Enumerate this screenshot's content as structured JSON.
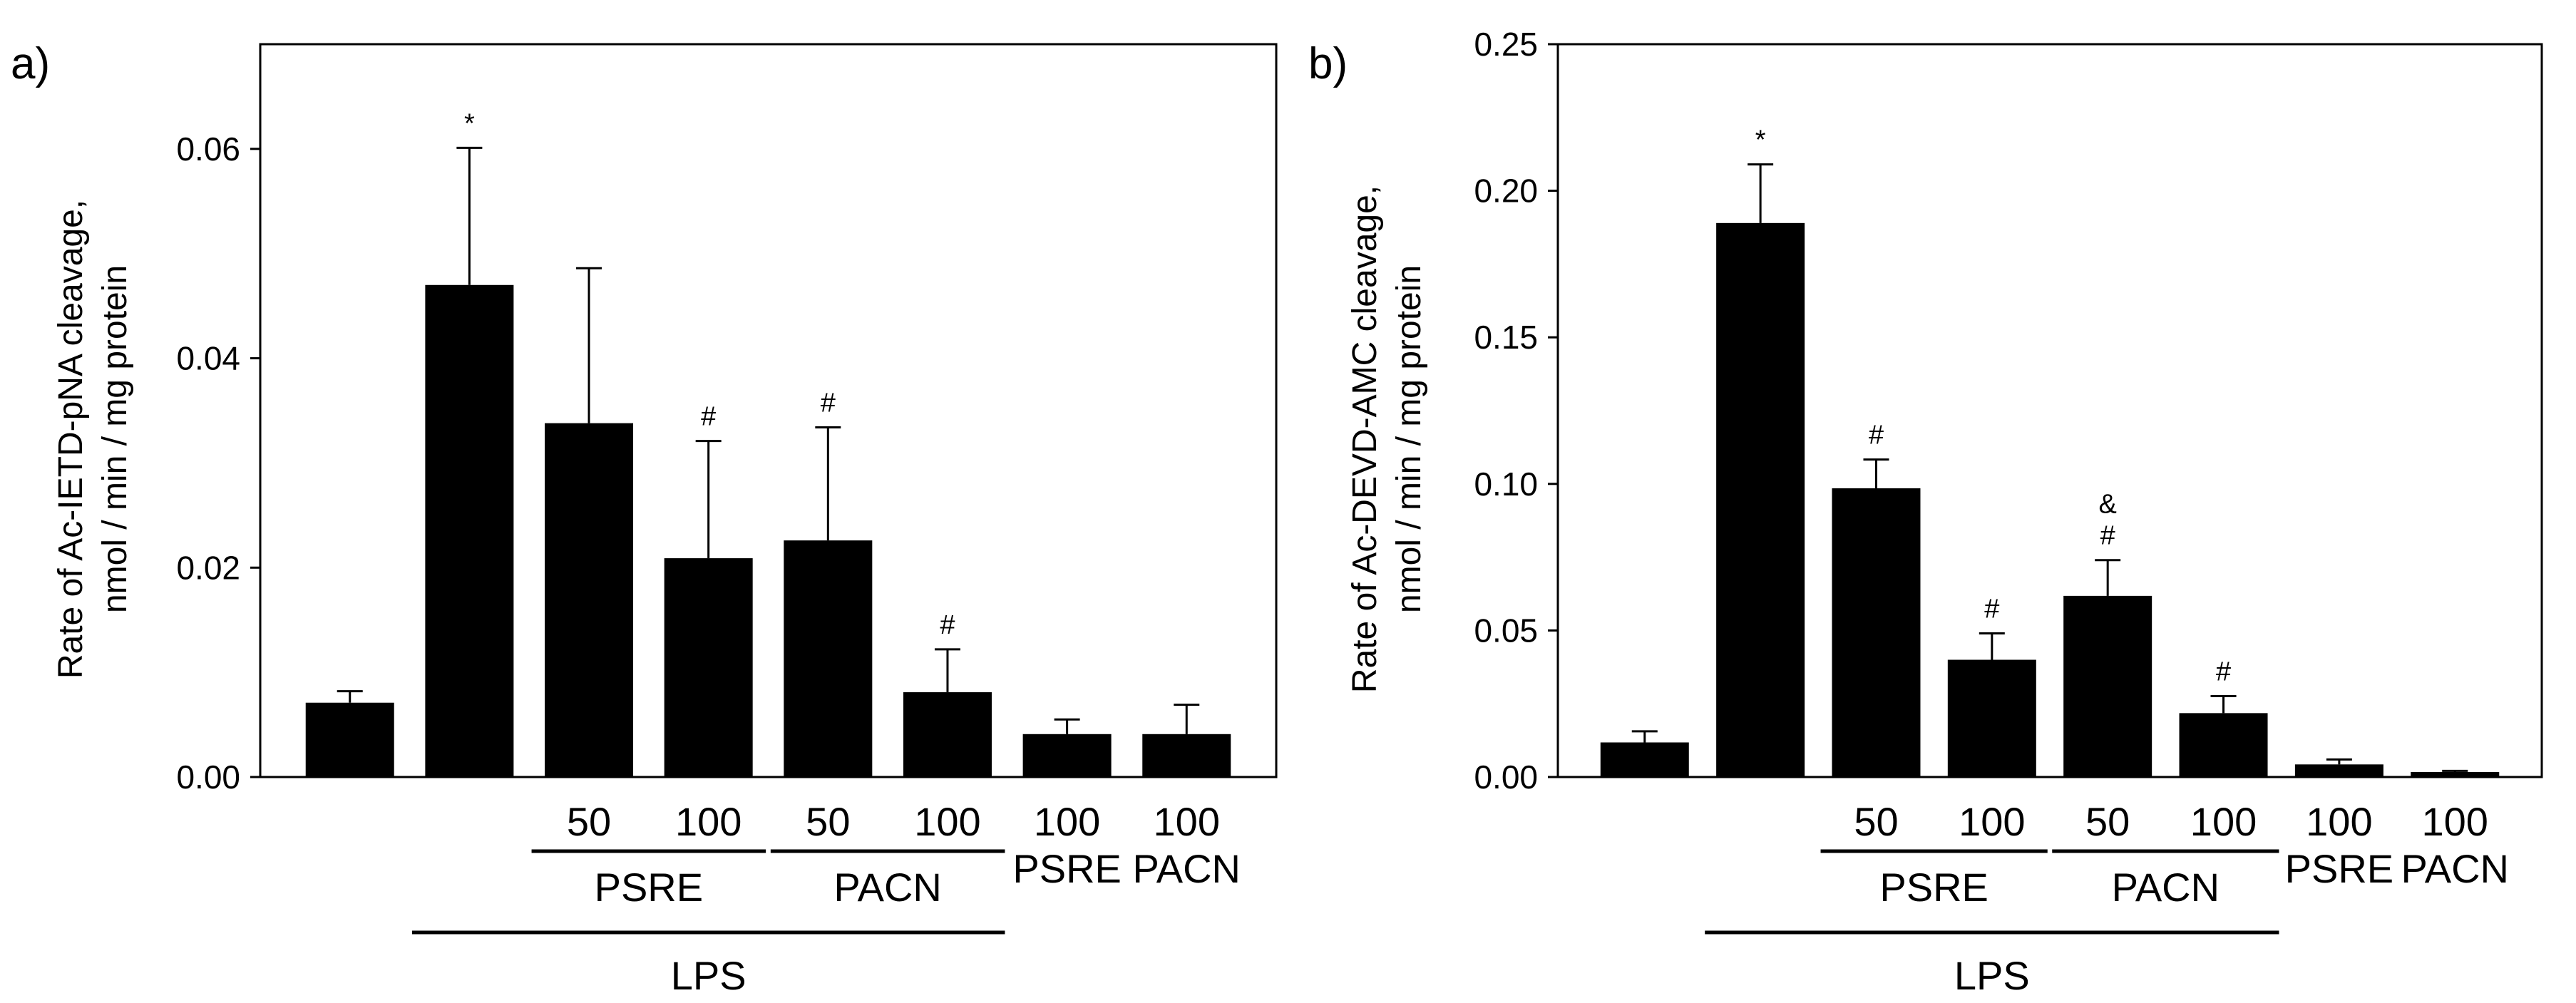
{
  "chart_data": [
    {
      "type": "bar",
      "panel_label": "a)",
      "title": "",
      "ylabel_lines": [
        "Rate of Ac-IETD-pNA cleavage,",
        "nmol / min / mg protein"
      ],
      "ylim": [
        0,
        0.07
      ],
      "yticks": [
        0.0,
        0.02,
        0.04,
        0.06
      ],
      "ytick_labels": [
        "0.00",
        "0.02",
        "0.04",
        "0.06"
      ],
      "values": [
        0.0071,
        0.047,
        0.0338,
        0.0209,
        0.0226,
        0.0081,
        0.0041,
        0.0041
      ],
      "errors": [
        0.0011,
        0.0131,
        0.0148,
        0.0112,
        0.0108,
        0.0041,
        0.0014,
        0.0028
      ],
      "markers": [
        "",
        "*",
        "",
        "#",
        "#",
        "#",
        "",
        ""
      ],
      "dose_labels": [
        "",
        "",
        "50",
        "100",
        "50",
        "100",
        "100",
        "100"
      ],
      "extract_labels": [
        "",
        "",
        "",
        "",
        "",
        "",
        "PSRE",
        "PACN"
      ],
      "group_labels": [
        {
          "label": "PSRE",
          "from": 2,
          "to": 3
        },
        {
          "label": "PACN",
          "from": 4,
          "to": 5
        }
      ],
      "lps_label": {
        "label": "LPS",
        "from": 1,
        "to": 5
      }
    },
    {
      "type": "bar",
      "panel_label": "b)",
      "title": "",
      "ylabel_lines": [
        "Rate of Ac-DEVD-AMC cleavage,",
        "nmol / min / mg protein"
      ],
      "ylim": [
        0,
        0.25
      ],
      "yticks": [
        0.0,
        0.05,
        0.1,
        0.15,
        0.2,
        0.25
      ],
      "ytick_labels": [
        "0.00",
        "0.05",
        "0.10",
        "0.15",
        "0.20",
        "0.25"
      ],
      "values": [
        0.0118,
        0.189,
        0.0985,
        0.04,
        0.0618,
        0.0218,
        0.0043,
        0.0017
      ],
      "errors": [
        0.0038,
        0.02,
        0.0098,
        0.009,
        0.0122,
        0.0058,
        0.0017,
        0.0004
      ],
      "markers": [
        "",
        "*",
        "#",
        "#",
        "&\n#",
        "#",
        "",
        ""
      ],
      "dose_labels": [
        "",
        "",
        "50",
        "100",
        "50",
        "100",
        "100",
        "100"
      ],
      "extract_labels": [
        "",
        "",
        "",
        "",
        "",
        "",
        "PSRE",
        "PACN"
      ],
      "group_labels": [
        {
          "label": "PSRE",
          "from": 2,
          "to": 3
        },
        {
          "label": "PACN",
          "from": 4,
          "to": 5
        }
      ],
      "lps_label": {
        "label": "LPS",
        "from": 1,
        "to": 5
      }
    }
  ]
}
